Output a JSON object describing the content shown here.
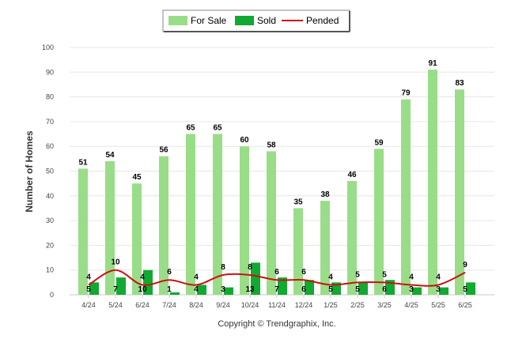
{
  "chart_data": {
    "type": "bar",
    "categories": [
      "4/24",
      "5/24",
      "6/24",
      "7/24",
      "8/24",
      "9/24",
      "10/24",
      "11/24",
      "12/24",
      "1/25",
      "2/25",
      "3/25",
      "4/25",
      "5/25",
      "6/25"
    ],
    "series": [
      {
        "name": "For Sale",
        "type": "bar",
        "color": "#99dd88",
        "values": [
          51,
          54,
          45,
          56,
          65,
          65,
          60,
          58,
          35,
          38,
          46,
          59,
          79,
          91,
          83
        ]
      },
      {
        "name": "Sold",
        "type": "bar",
        "color": "#11a931",
        "values": [
          5,
          7,
          10,
          1,
          4,
          3,
          13,
          7,
          6,
          5,
          5,
          6,
          3,
          3,
          5
        ]
      },
      {
        "name": "Pended",
        "type": "line",
        "color": "#cc1111",
        "values": [
          4,
          10,
          4,
          6,
          4,
          8,
          8,
          6,
          6,
          4,
          5,
          5,
          4,
          4,
          9
        ]
      }
    ],
    "ylabel": "Number of Homes",
    "xlabel": "",
    "ylim": [
      0,
      100
    ],
    "yticks": [
      0,
      10,
      20,
      30,
      40,
      50,
      60,
      70,
      80,
      90,
      100
    ],
    "grid": true,
    "legend_position": "top-center"
  },
  "footer": {
    "copyright": "Copyright © Trendgraphix, Inc."
  }
}
